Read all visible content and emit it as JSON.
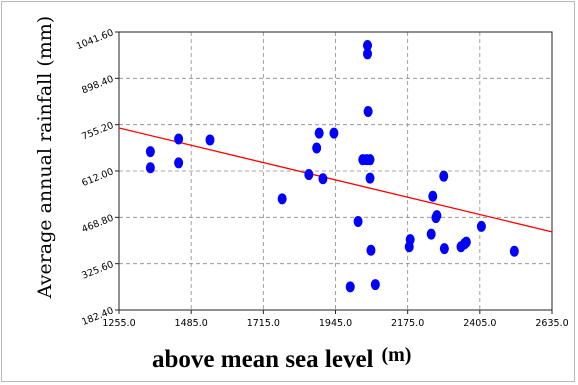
{
  "chart_data": {
    "type": "scatter",
    "title": "",
    "xlabel": "above mean sea level",
    "xlabel_unit": "(m)",
    "ylabel": "Average annual rainfall (mm)",
    "xlim": [
      1255.0,
      2635.0
    ],
    "ylim": [
      182.4,
      1041.6
    ],
    "x_ticks": [
      "1255.0",
      "1485.0",
      "1715.0",
      "1945.0",
      "2175.0",
      "2405.0",
      "2635.0"
    ],
    "y_ticks": [
      "182.40",
      "325.60",
      "468.80",
      "612.00",
      "755.20",
      "898.40",
      "1041.60"
    ],
    "grid": true,
    "marker_color": "#0000ff",
    "trendline_color": "#ff0000",
    "trendline": [
      [
        1255.0,
        745.0
      ],
      [
        2635.0,
        424.0
      ]
    ],
    "points": [
      [
        1355,
        672
      ],
      [
        1355,
        622
      ],
      [
        1445,
        711
      ],
      [
        1445,
        637
      ],
      [
        1545,
        708
      ],
      [
        1775,
        526
      ],
      [
        1860,
        601
      ],
      [
        1885,
        683
      ],
      [
        1893,
        729
      ],
      [
        1905,
        588
      ],
      [
        1940,
        729
      ],
      [
        1992,
        254
      ],
      [
        2017,
        456
      ],
      [
        2032,
        647
      ],
      [
        2044,
        647
      ],
      [
        2047,
        974
      ],
      [
        2047,
        1000
      ],
      [
        2049,
        796
      ],
      [
        2055,
        647
      ],
      [
        2055,
        590
      ],
      [
        2058,
        367
      ],
      [
        2072,
        261
      ],
      [
        2180,
        378
      ],
      [
        2183,
        400
      ],
      [
        2250,
        417
      ],
      [
        2255,
        534
      ],
      [
        2265,
        468
      ],
      [
        2268,
        474
      ],
      [
        2290,
        596
      ],
      [
        2292,
        372
      ],
      [
        2345,
        378
      ],
      [
        2356,
        387
      ],
      [
        2362,
        392
      ],
      [
        2410,
        441
      ],
      [
        2515,
        364
      ]
    ]
  }
}
